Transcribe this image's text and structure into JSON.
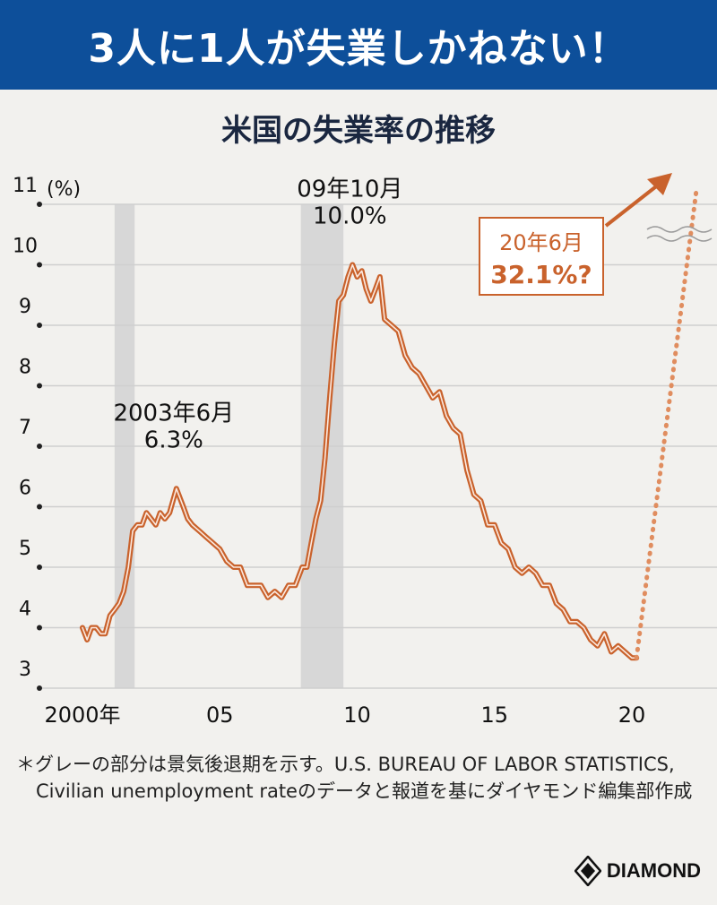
{
  "banner": {
    "headline": "3人に1人が失業しかねない！"
  },
  "footer": {
    "note": "＊グレーの部分は景気後退期を示す。U.S. BUREAU OF LABOR STATISTICS, Civilian unemployment rateのデータと報道を基にダイヤモンド編集部作成",
    "logo_text": "DIAMOND"
  },
  "colors": {
    "banner": "#0d4f9a",
    "line": "#c9622c",
    "forecast": "#e08d5f",
    "recession": "#d7d7d7",
    "grid": "#cfcfcf"
  },
  "chart_data": {
    "type": "line",
    "title": "米国の失業率の推移",
    "ylabel": "(%)",
    "ylim": [
      3,
      11
    ],
    "yticks": [
      "3",
      "4",
      "5",
      "6",
      "7",
      "8",
      "9",
      "10",
      "11"
    ],
    "xlim": [
      2000,
      2021.5
    ],
    "xticks": [
      {
        "x": 2000,
        "label": "2000年"
      },
      {
        "x": 2005,
        "label": "05"
      },
      {
        "x": 2010,
        "label": "10"
      },
      {
        "x": 2015,
        "label": "15"
      },
      {
        "x": 2020,
        "label": "20"
      }
    ],
    "recessions": [
      [
        2001.17,
        2001.9
      ],
      [
        2007.95,
        2009.5
      ]
    ],
    "series": [
      {
        "x": [
          2000.0,
          2000.17,
          2000.33,
          2000.5,
          2000.67,
          2000.83,
          2001.0,
          2001.17,
          2001.33,
          2001.5,
          2001.67,
          2001.83,
          2002.0,
          2002.17,
          2002.33,
          2002.5,
          2002.67,
          2002.83,
          2003.0,
          2003.17,
          2003.42,
          2003.67,
          2003.83,
          2004.0,
          2004.25,
          2004.5,
          2004.75,
          2005.0,
          2005.25,
          2005.5,
          2005.75,
          2006.0,
          2006.25,
          2006.5,
          2006.75,
          2007.0,
          2007.25,
          2007.5,
          2007.75,
          2008.0,
          2008.17,
          2008.33,
          2008.5,
          2008.67,
          2008.83,
          2009.0,
          2009.17,
          2009.33,
          2009.5,
          2009.67,
          2009.83,
          2010.0,
          2010.17,
          2010.33,
          2010.5,
          2010.67,
          2010.83,
          2011.0,
          2011.25,
          2011.5,
          2011.75,
          2012.0,
          2012.25,
          2012.5,
          2012.75,
          2013.0,
          2013.25,
          2013.5,
          2013.75,
          2014.0,
          2014.25,
          2014.5,
          2014.75,
          2015.0,
          2015.25,
          2015.5,
          2015.75,
          2016.0,
          2016.25,
          2016.5,
          2016.75,
          2017.0,
          2017.25,
          2017.5,
          2017.75,
          2018.0,
          2018.25,
          2018.5,
          2018.75,
          2019.0,
          2019.25,
          2019.5,
          2019.75,
          2020.0,
          2020.17
        ],
        "values": [
          4.0,
          3.8,
          4.0,
          4.0,
          3.9,
          3.9,
          4.2,
          4.3,
          4.4,
          4.6,
          5.0,
          5.6,
          5.7,
          5.7,
          5.9,
          5.8,
          5.7,
          5.9,
          5.8,
          5.9,
          6.3,
          6.0,
          5.8,
          5.7,
          5.6,
          5.5,
          5.4,
          5.3,
          5.1,
          5.0,
          5.0,
          4.7,
          4.7,
          4.7,
          4.5,
          4.6,
          4.5,
          4.7,
          4.7,
          5.0,
          5.0,
          5.4,
          5.8,
          6.1,
          6.8,
          7.8,
          8.7,
          9.4,
          9.5,
          9.8,
          10.0,
          9.8,
          9.9,
          9.6,
          9.4,
          9.6,
          9.8,
          9.1,
          9.0,
          8.9,
          8.5,
          8.3,
          8.2,
          8.0,
          7.8,
          7.9,
          7.5,
          7.3,
          7.2,
          6.6,
          6.2,
          6.1,
          5.7,
          5.7,
          5.4,
          5.3,
          5.0,
          4.9,
          5.0,
          4.9,
          4.7,
          4.7,
          4.4,
          4.3,
          4.1,
          4.1,
          4.0,
          3.8,
          3.7,
          3.9,
          3.6,
          3.7,
          3.6,
          3.5,
          3.5
        ]
      }
    ],
    "forecast": {
      "x": [
        2020.17,
        2021.1
      ],
      "values": [
        3.5,
        11.2
      ]
    },
    "annotations": [
      {
        "title": "2003年6月",
        "value": "6.3%",
        "x": 2003.42,
        "y": 6.3
      },
      {
        "title": "09年10月",
        "value": "10.0%",
        "x": 2009.83,
        "y": 10.0
      }
    ],
    "forecast_callout": {
      "title": "20年6月",
      "value": "32.1%?"
    }
  }
}
